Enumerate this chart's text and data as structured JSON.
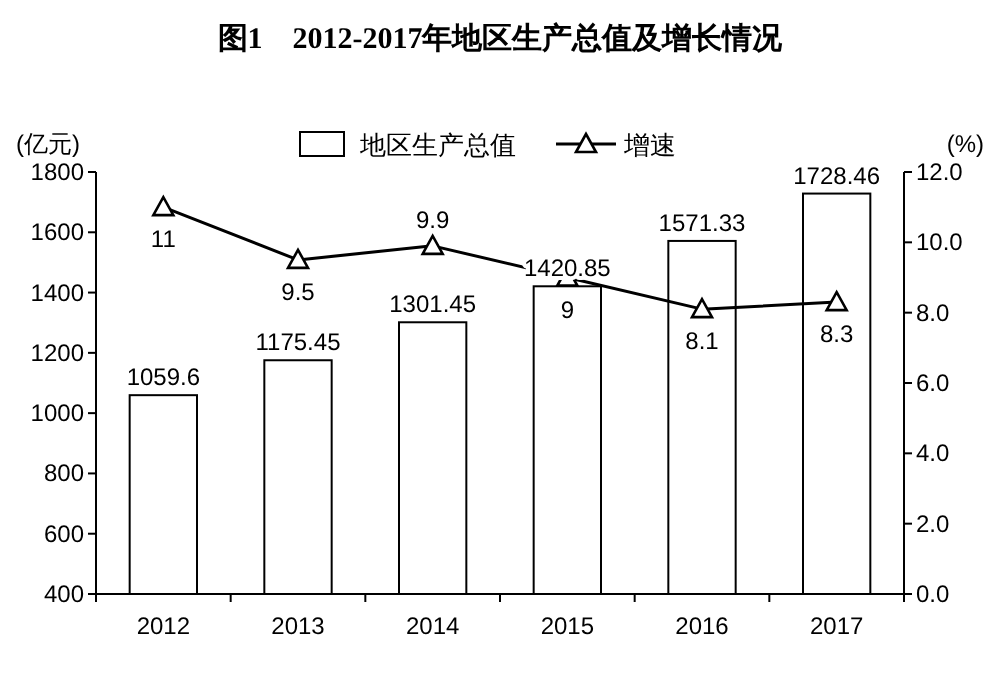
{
  "chart_data": {
    "type": "bar",
    "title": "图1　2012-2017年地区生产总值及增长情况",
    "ylabel": "(亿元)",
    "y2label": "(%)",
    "categories": [
      "2012",
      "2013",
      "2014",
      "2015",
      "2016",
      "2017"
    ],
    "series": [
      {
        "name": "地区生产总值",
        "color": "#ffffff",
        "values": [
          1059.6,
          1175.45,
          1301.45,
          1420.85,
          1571.33,
          1728.46
        ]
      },
      {
        "name": "增速",
        "type": "line",
        "axis": "y2",
        "color": "#000000",
        "marker": "triangle",
        "values": [
          11,
          9.5,
          9.9,
          9,
          8.1,
          8.3
        ]
      }
    ],
    "ylim": [
      400,
      1800
    ],
    "yticks": [
      400,
      600,
      800,
      1000,
      1200,
      1400,
      1600,
      1800
    ],
    "y2lim": [
      0,
      12
    ],
    "y2ticks": [
      {
        "value": 0,
        "label": "0.0"
      },
      {
        "value": 2,
        "label": "2.0"
      },
      {
        "value": 4,
        "label": "4.0"
      },
      {
        "value": 6,
        "label": "6.0"
      },
      {
        "value": 8,
        "label": "8.0"
      },
      {
        "value": 10,
        "label": "10.0"
      },
      {
        "value": 12,
        "label": "12.0"
      }
    ],
    "data_labels": true,
    "legend": "top",
    "grid": false
  }
}
